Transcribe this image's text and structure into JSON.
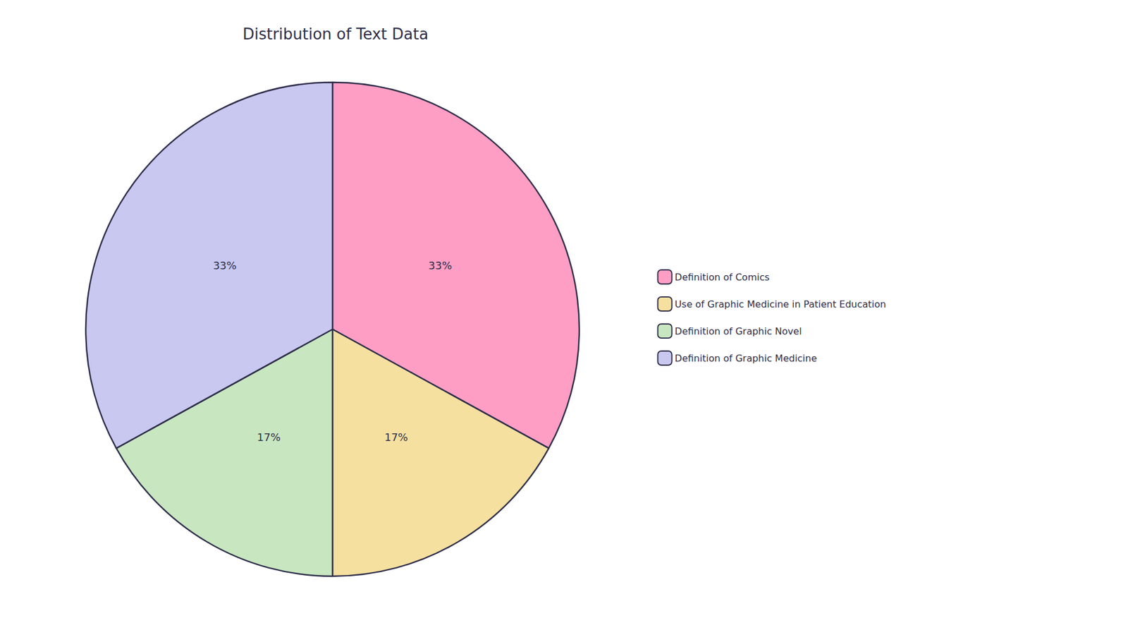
{
  "chart_data": {
    "type": "pie",
    "title": "Distribution of Text Data",
    "categories": [
      "Definition of Comics",
      "Use of Graphic Medicine in Patient Education",
      "Definition of Graphic Novel",
      "Definition of Graphic Medicine"
    ],
    "values": [
      33,
      17,
      17,
      33
    ],
    "value_labels": [
      "33%",
      "17%",
      "17%",
      "33%"
    ],
    "colors": [
      "#FF9EC4",
      "#F5E0A0",
      "#C8E6C0",
      "#C8C8F0"
    ],
    "data_labels": true,
    "legend": "right"
  }
}
